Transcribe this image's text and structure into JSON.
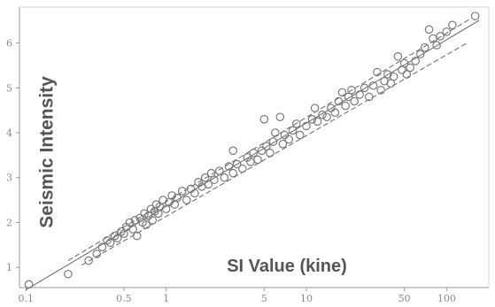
{
  "chart_data": {
    "type": "scatter",
    "title": "",
    "xlabel": "SI Value (kine)",
    "ylabel": "Seismic Intensity",
    "x_scale": "log",
    "xlim": [
      0.09,
      200
    ],
    "ylim": [
      0.55,
      6.8
    ],
    "x_ticks": [
      0.1,
      0.5,
      1,
      5,
      10,
      50,
      100
    ],
    "x_tick_labels": [
      "0.1",
      "0.5",
      "1",
      "5",
      "10",
      "50",
      "100"
    ],
    "y_ticks": [
      1,
      2,
      3,
      4,
      5,
      6
    ],
    "y_tick_labels": [
      "1",
      "2",
      "3",
      "4",
      "5",
      "6"
    ],
    "grid": false,
    "legend": "none",
    "colors": {
      "axis": "#9a9a9a",
      "tick_text": "#8a8a8a",
      "marker_stroke": "#7a7a7a",
      "line": "#666666",
      "axis_title": "#555555"
    },
    "lines": [
      {
        "style": "solid",
        "x": [
          0.1,
          170
        ],
        "y": [
          0.5,
          6.5
        ]
      },
      {
        "style": "dashed",
        "x": [
          0.2,
          150
        ],
        "y": [
          1.15,
          6.55
        ]
      },
      {
        "style": "dashed",
        "x": [
          0.25,
          140
        ],
        "y": [
          1.05,
          6.0
        ]
      }
    ],
    "points": [
      {
        "x": 0.105,
        "y": 0.62
      },
      {
        "x": 0.2,
        "y": 0.85
      },
      {
        "x": 0.28,
        "y": 1.15
      },
      {
        "x": 0.32,
        "y": 1.3
      },
      {
        "x": 0.35,
        "y": 1.45
      },
      {
        "x": 0.38,
        "y": 1.6
      },
      {
        "x": 0.4,
        "y": 1.55
      },
      {
        "x": 0.43,
        "y": 1.7
      },
      {
        "x": 0.45,
        "y": 1.65
      },
      {
        "x": 0.48,
        "y": 1.8
      },
      {
        "x": 0.5,
        "y": 1.75
      },
      {
        "x": 0.52,
        "y": 1.9
      },
      {
        "x": 0.55,
        "y": 2.0
      },
      {
        "x": 0.58,
        "y": 1.85
      },
      {
        "x": 0.6,
        "y": 2.05
      },
      {
        "x": 0.62,
        "y": 1.7
      },
      {
        "x": 0.65,
        "y": 2.1
      },
      {
        "x": 0.68,
        "y": 2.0
      },
      {
        "x": 0.7,
        "y": 2.2
      },
      {
        "x": 0.72,
        "y": 1.95
      },
      {
        "x": 0.75,
        "y": 2.15
      },
      {
        "x": 0.78,
        "y": 2.3
      },
      {
        "x": 0.8,
        "y": 2.05
      },
      {
        "x": 0.83,
        "y": 2.25
      },
      {
        "x": 0.85,
        "y": 2.4
      },
      {
        "x": 0.88,
        "y": 2.2
      },
      {
        "x": 0.9,
        "y": 2.35
      },
      {
        "x": 0.95,
        "y": 2.5
      },
      {
        "x": 1.0,
        "y": 2.3
      },
      {
        "x": 1.05,
        "y": 2.45
      },
      {
        "x": 1.1,
        "y": 2.6
      },
      {
        "x": 1.15,
        "y": 2.4
      },
      {
        "x": 1.2,
        "y": 2.55
      },
      {
        "x": 1.3,
        "y": 2.7
      },
      {
        "x": 1.4,
        "y": 2.5
      },
      {
        "x": 1.5,
        "y": 2.75
      },
      {
        "x": 1.6,
        "y": 2.65
      },
      {
        "x": 1.7,
        "y": 2.9
      },
      {
        "x": 1.8,
        "y": 2.8
      },
      {
        "x": 1.9,
        "y": 3.0
      },
      {
        "x": 2.0,
        "y": 2.85
      },
      {
        "x": 2.1,
        "y": 3.1
      },
      {
        "x": 2.2,
        "y": 2.95
      },
      {
        "x": 2.4,
        "y": 3.15
      },
      {
        "x": 2.6,
        "y": 3.0
      },
      {
        "x": 2.8,
        "y": 3.25
      },
      {
        "x": 3.0,
        "y": 3.6
      },
      {
        "x": 3.0,
        "y": 3.1
      },
      {
        "x": 3.2,
        "y": 3.3
      },
      {
        "x": 3.5,
        "y": 3.2
      },
      {
        "x": 3.8,
        "y": 3.45
      },
      {
        "x": 4.0,
        "y": 3.35
      },
      {
        "x": 4.2,
        "y": 3.55
      },
      {
        "x": 4.5,
        "y": 3.4
      },
      {
        "x": 4.8,
        "y": 3.6
      },
      {
        "x": 5.0,
        "y": 4.3
      },
      {
        "x": 5.2,
        "y": 3.7
      },
      {
        "x": 5.5,
        "y": 3.55
      },
      {
        "x": 5.8,
        "y": 3.8
      },
      {
        "x": 6.0,
        "y": 4.0
      },
      {
        "x": 6.5,
        "y": 4.35
      },
      {
        "x": 6.8,
        "y": 3.75
      },
      {
        "x": 7.0,
        "y": 3.95
      },
      {
        "x": 7.5,
        "y": 3.85
      },
      {
        "x": 8.0,
        "y": 4.05
      },
      {
        "x": 8.5,
        "y": 4.2
      },
      {
        "x": 9.0,
        "y": 3.95
      },
      {
        "x": 10.0,
        "y": 4.15
      },
      {
        "x": 11.0,
        "y": 4.3
      },
      {
        "x": 11.5,
        "y": 4.55
      },
      {
        "x": 12.0,
        "y": 4.25
      },
      {
        "x": 13.0,
        "y": 4.4
      },
      {
        "x": 14.0,
        "y": 4.35
      },
      {
        "x": 15.0,
        "y": 4.55
      },
      {
        "x": 16.0,
        "y": 4.45
      },
      {
        "x": 17.0,
        "y": 4.7
      },
      {
        "x": 18.0,
        "y": 4.9
      },
      {
        "x": 19.0,
        "y": 4.6
      },
      {
        "x": 20.0,
        "y": 4.8
      },
      {
        "x": 21.0,
        "y": 4.95
      },
      {
        "x": 22.0,
        "y": 4.7
      },
      {
        "x": 24.0,
        "y": 4.85
      },
      {
        "x": 26.0,
        "y": 5.0
      },
      {
        "x": 28.0,
        "y": 4.8
      },
      {
        "x": 30.0,
        "y": 5.05
      },
      {
        "x": 32.0,
        "y": 5.35
      },
      {
        "x": 34.0,
        "y": 4.95
      },
      {
        "x": 36.0,
        "y": 5.15
      },
      {
        "x": 38.0,
        "y": 5.3
      },
      {
        "x": 40.0,
        "y": 5.1
      },
      {
        "x": 42.0,
        "y": 5.25
      },
      {
        "x": 45.0,
        "y": 5.7
      },
      {
        "x": 48.0,
        "y": 5.4
      },
      {
        "x": 50.0,
        "y": 5.55
      },
      {
        "x": 52.0,
        "y": 5.3
      },
      {
        "x": 55.0,
        "y": 5.45
      },
      {
        "x": 60.0,
        "y": 5.6
      },
      {
        "x": 65.0,
        "y": 5.75
      },
      {
        "x": 70.0,
        "y": 5.9
      },
      {
        "x": 75.0,
        "y": 6.3
      },
      {
        "x": 80.0,
        "y": 6.1
      },
      {
        "x": 85.0,
        "y": 5.95
      },
      {
        "x": 90.0,
        "y": 6.15
      },
      {
        "x": 100.0,
        "y": 6.25
      },
      {
        "x": 110.0,
        "y": 6.4
      },
      {
        "x": 160.0,
        "y": 6.6
      }
    ]
  }
}
